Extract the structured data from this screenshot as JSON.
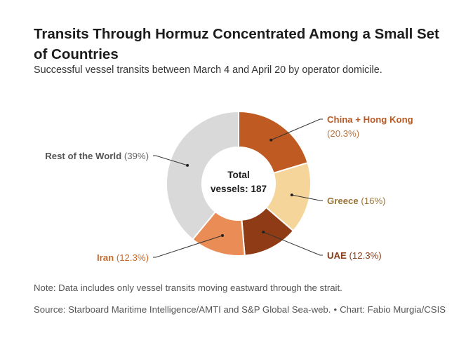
{
  "title": "Transits Through Hormuz Concentrated Among a Small Set of Countries",
  "subtitle": "Successful vessel transits between March 4 and April 20 by operator domicile.",
  "chart_data": {
    "type": "pie",
    "variant": "donut",
    "center_label": [
      "Total",
      "vessels: 187"
    ],
    "slices": [
      {
        "label": "China + Hong Kong",
        "value_text": "(20.3%)",
        "value": 20.3,
        "color": "#bf5a22",
        "label_color": "#b85a26"
      },
      {
        "label": "Greece",
        "value_text": "(16%)",
        "value": 16,
        "color": "#f5d59a",
        "label_color": "#9a7436"
      },
      {
        "label": "UAE",
        "value_text": "(12.3%)",
        "value": 12.3,
        "color": "#8e3b16",
        "label_color": "#8a3a14"
      },
      {
        "label": "Iran",
        "value_text": "(12.3%)",
        "value": 12.3,
        "color": "#ea8c55",
        "label_color": "#c86a2e"
      },
      {
        "label": "Rest of the World",
        "value_text": "(39%)",
        "value": 39,
        "color": "#d9d9d9",
        "label_color": "#555555"
      }
    ]
  },
  "note": "Note: Data includes only vessel transits moving eastward through the strait.",
  "source": {
    "text": "Source: Starboard Maritime Intelligence/AMTI and S&P Global Sea-web.",
    "bullet": "•",
    "credit": "Chart: Fabio Murgia/CSIS"
  }
}
